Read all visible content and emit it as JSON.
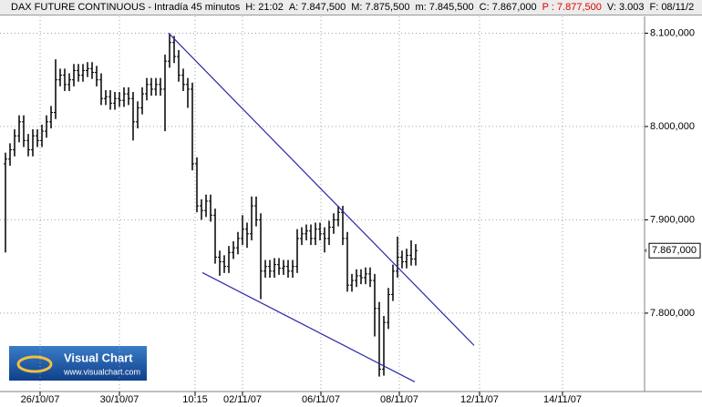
{
  "header": {
    "items": [
      {
        "text": "DAX FUTURE CONTINUOUS - Intradía 45 minutos",
        "color": "#000000"
      },
      {
        "text": "H: 21:02",
        "color": "#000000"
      },
      {
        "text": "A: 7.847,500",
        "color": "#000000"
      },
      {
        "text": "M: 7.875,500",
        "color": "#000000"
      },
      {
        "text": "m: 7.845,500",
        "color": "#000000"
      },
      {
        "text": "C: 7.867,000",
        "color": "#000000"
      },
      {
        "text": "P : 7.877,500",
        "color": "#e00000"
      },
      {
        "text": "V: 3.003",
        "color": "#000000"
      },
      {
        "text": "F: 08/11/2",
        "color": "#000000"
      }
    ]
  },
  "logo": {
    "title": "Visual Chart",
    "url": "www.visualchart.com"
  },
  "chart_data": {
    "type": "ohlc",
    "color": "#000000",
    "grid": true,
    "open": [
      7960,
      7965,
      7975,
      7990,
      8005,
      7985,
      7975,
      7990,
      7985,
      7995,
      8005,
      8015,
      8050,
      8055,
      8045,
      8050,
      8060,
      8055,
      8060,
      8062,
      8058,
      8050,
      8030,
      8032,
      8025,
      8030,
      8028,
      8035,
      8030,
      8005,
      8020,
      8035,
      8045,
      8040,
      8045,
      8040,
      8070,
      8090,
      8075,
      8055,
      8045,
      8040,
      7960,
      7915,
      7910,
      7920,
      7905,
      7860,
      7855,
      7850,
      7865,
      7870,
      7880,
      7890,
      7885,
      7915,
      7900,
      7845,
      7850,
      7845,
      7852,
      7848,
      7850,
      7845,
      7850,
      7880,
      7885,
      7888,
      7880,
      7890,
      7885,
      7880,
      7892,
      7900,
      7908,
      7880,
      7830,
      7835,
      7840,
      7838,
      7842,
      7835,
      7805,
      7740,
      7790,
      7820,
      7845,
      7860,
      7855,
      7862,
      7858
    ],
    "high": [
      7972,
      7982,
      7997,
      8012,
      8012,
      7992,
      7997,
      7997,
      8002,
      8012,
      8022,
      8072,
      8062,
      8062,
      8057,
      8067,
      8067,
      8067,
      8069,
      8069,
      8065,
      8057,
      8039,
      8039,
      8037,
      8037,
      8042,
      8042,
      8037,
      8027,
      8042,
      8052,
      8052,
      8052,
      8052,
      8077,
      8100,
      8097,
      8082,
      8062,
      8052,
      8047,
      7967,
      7922,
      7927,
      7927,
      7912,
      7867,
      7862,
      7872,
      7877,
      7887,
      7905,
      7897,
      7925,
      7925,
      7907,
      7857,
      7857,
      7859,
      7859,
      7857,
      7857,
      7857,
      7890,
      7892,
      7895,
      7895,
      7897,
      7897,
      7892,
      7899,
      7907,
      7915,
      7915,
      7887,
      7842,
      7847,
      7847,
      7849,
      7849,
      7842,
      7812,
      7797,
      7827,
      7852,
      7882,
      7867,
      7869,
      7878,
      7874
    ],
    "low": [
      7865,
      7958,
      7968,
      7983,
      7978,
      7968,
      7968,
      7978,
      7978,
      7988,
      7998,
      8008,
      8043,
      8038,
      8038,
      8043,
      8048,
      8048,
      8053,
      8051,
      8043,
      8023,
      8023,
      8018,
      8018,
      8021,
      8021,
      8023,
      7985,
      7998,
      8013,
      8028,
      8033,
      8033,
      8033,
      7995,
      8063,
      8068,
      8048,
      8038,
      8020,
      7953,
      7908,
      7900,
      7903,
      7898,
      7853,
      7840,
      7843,
      7843,
      7858,
      7863,
      7873,
      7870,
      7878,
      7893,
      7815,
      7838,
      7838,
      7838,
      7841,
      7841,
      7838,
      7838,
      7843,
      7873,
      7878,
      7873,
      7873,
      7878,
      7865,
      7873,
      7885,
      7893,
      7873,
      7823,
      7823,
      7828,
      7831,
      7831,
      7828,
      7775,
      7732,
      7733,
      7783,
      7813,
      7838,
      7848,
      7848,
      7851,
      7851
    ],
    "close": [
      7965,
      7975,
      7990,
      8005,
      7985,
      7975,
      7990,
      7985,
      7995,
      8005,
      8015,
      8050,
      8055,
      8045,
      8050,
      8060,
      8055,
      8060,
      8062,
      8058,
      8050,
      8030,
      8032,
      8025,
      8030,
      8028,
      8035,
      8030,
      8005,
      8020,
      8035,
      8045,
      8040,
      8045,
      8040,
      8070,
      8090,
      8075,
      8055,
      8045,
      8040,
      7960,
      7915,
      7910,
      7920,
      7905,
      7860,
      7855,
      7850,
      7865,
      7870,
      7880,
      7890,
      7885,
      7915,
      7900,
      7845,
      7850,
      7845,
      7852,
      7848,
      7850,
      7845,
      7850,
      7880,
      7885,
      7888,
      7880,
      7890,
      7885,
      7880,
      7892,
      7900,
      7908,
      7880,
      7830,
      7835,
      7840,
      7838,
      7842,
      7835,
      7805,
      7740,
      7790,
      7820,
      7845,
      7860,
      7855,
      7862,
      7858,
      7867
    ],
    "xlim": [
      -1.2,
      140.2
    ],
    "ylim": [
      7716,
      8118
    ],
    "xticks": [
      {
        "value": 7.6,
        "label": "26/10/07"
      },
      {
        "value": 25,
        "label": "30/10/07"
      },
      {
        "value": 41.6,
        "label": "10:15"
      },
      {
        "value": 52,
        "label": "02/11/07"
      },
      {
        "value": 69.2,
        "label": "06/11/07"
      },
      {
        "value": 86.4,
        "label": "08/11/07"
      },
      {
        "value": 104,
        "label": "12/11/07"
      },
      {
        "value": 122.2,
        "label": "14/11/07"
      }
    ],
    "yticks": [
      {
        "value": 8100,
        "label": "8.100,000"
      },
      {
        "value": 8000,
        "label": "8.000,000"
      },
      {
        "value": 7900,
        "label": "7.900,000"
      },
      {
        "value": 7800,
        "label": "7.800,000"
      }
    ],
    "last": {
      "value": 7867,
      "label": "7.867,000"
    },
    "trendlines": [
      {
        "x": [
          35.8,
          102.8
        ],
        "y": [
          8100,
          7765.4
        ],
        "color": "#2a2aa8"
      },
      {
        "x": [
          43.2,
          89.8
        ],
        "y": [
          7843.4,
          7726.3
        ],
        "color": "#2a2aa8"
      }
    ]
  }
}
